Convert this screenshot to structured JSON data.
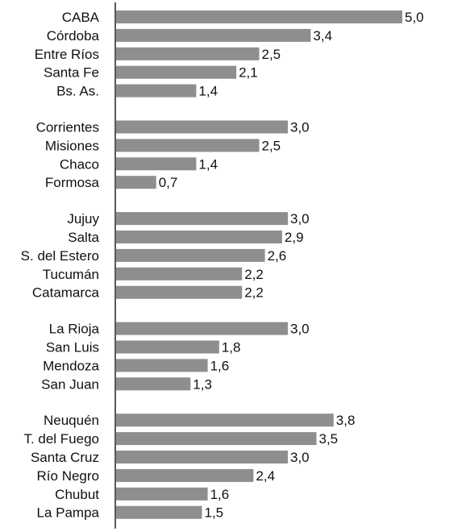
{
  "chart_data": {
    "type": "bar",
    "orientation": "horizontal",
    "xlim": [
      0,
      5.0
    ],
    "grid": false,
    "legend": "none",
    "bar_color": "#8e8e8e",
    "axis_color": "#222222",
    "groups": [
      {
        "categories": [
          "CABA",
          "Córdoba",
          "Entre Ríos",
          "Santa Fe",
          "Bs. As."
        ],
        "values": [
          5.0,
          3.4,
          2.5,
          2.1,
          1.4
        ],
        "labels": [
          "5,0",
          "3,4",
          "2,5",
          "2,1",
          "1,4"
        ]
      },
      {
        "categories": [
          "Corrientes",
          "Misiones",
          "Chaco",
          "Formosa"
        ],
        "values": [
          3.0,
          2.5,
          1.4,
          0.7
        ],
        "labels": [
          "3,0",
          "2,5",
          "1,4",
          "0,7"
        ]
      },
      {
        "categories": [
          "Jujuy",
          "Salta",
          "S. del Estero",
          "Tucumán",
          "Catamarca"
        ],
        "values": [
          3.0,
          2.9,
          2.6,
          2.2,
          2.2
        ],
        "labels": [
          "3,0",
          "2,9",
          "2,6",
          "2,2",
          "2,2"
        ]
      },
      {
        "categories": [
          "La Rioja",
          "San Luis",
          "Mendoza",
          "San Juan"
        ],
        "values": [
          3.0,
          1.8,
          1.6,
          1.3
        ],
        "labels": [
          "3,0",
          "1,8",
          "1,6",
          "1,3"
        ]
      },
      {
        "categories": [
          "Neuquén",
          "T. del Fuego",
          "Santa Cruz",
          "Río Negro",
          "Chubut",
          "La Pampa"
        ],
        "values": [
          3.8,
          3.5,
          3.0,
          2.4,
          1.6,
          1.5
        ],
        "labels": [
          "3,8",
          "3,5",
          "3,0",
          "2,4",
          "1,6",
          "1,5"
        ]
      }
    ]
  }
}
